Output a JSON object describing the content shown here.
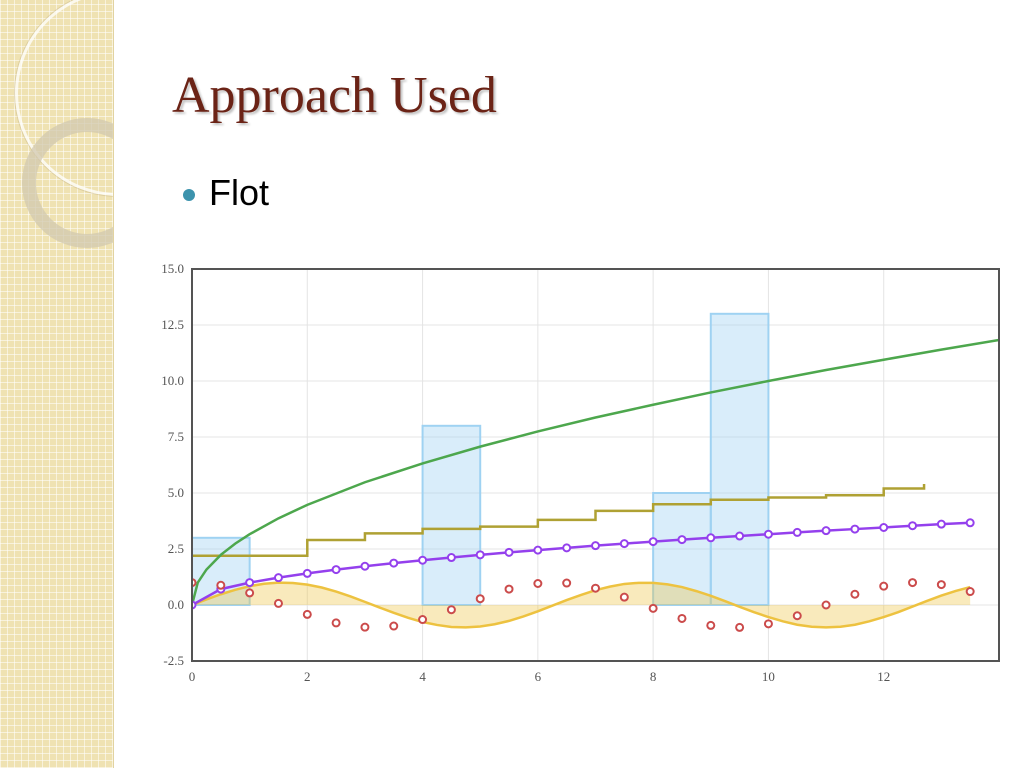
{
  "slide": {
    "title": "Approach Used",
    "bullets": [
      "Flot"
    ]
  },
  "colors": {
    "title": "#6b2316",
    "bullet": "#3c93ad",
    "sidebar": "#efe2b2"
  },
  "chart_data": {
    "type": "line",
    "xlim": [
      0,
      14
    ],
    "ylim": [
      -2.5,
      15.0
    ],
    "xticks": [
      0,
      2,
      4,
      6,
      8,
      10,
      12
    ],
    "yticks": [
      -2.5,
      0.0,
      2.5,
      5.0,
      7.5,
      10.0,
      12.5,
      15.0
    ],
    "xtick_labels": [
      "0",
      "2",
      "4",
      "6",
      "8",
      "10",
      "12"
    ],
    "ytick_labels": [
      "-2.5",
      "0.0",
      "2.5",
      "5.0",
      "7.5",
      "10.0",
      "12.5",
      "15.0"
    ],
    "grid": true,
    "series": [
      {
        "type": "bar",
        "color": "#9fd2f2",
        "bars": [
          {
            "x0": 0,
            "x1": 1,
            "y": 3
          },
          {
            "x0": 4,
            "x1": 5,
            "y": 8
          },
          {
            "x0": 8,
            "x1": 9,
            "y": 5
          },
          {
            "x0": 9,
            "x1": 10,
            "y": 13
          }
        ]
      },
      {
        "type": "area",
        "color": "#edc240",
        "x": [
          0,
          0.25,
          0.5,
          0.75,
          1,
          1.25,
          1.5,
          1.75,
          2,
          2.25,
          2.5,
          2.75,
          3,
          3.25,
          3.5,
          3.75,
          4,
          4.25,
          4.5,
          4.75,
          5,
          5.25,
          5.5,
          5.75,
          6,
          6.25,
          6.5,
          6.75,
          7,
          7.25,
          7.5,
          7.75,
          8,
          8.25,
          8.5,
          8.75,
          9,
          9.25,
          9.5,
          9.75,
          10,
          10.25,
          10.5,
          10.75,
          11,
          11.25,
          11.5,
          11.75,
          12,
          12.25,
          12.5,
          12.75,
          13,
          13.25,
          13.5
        ],
        "y": [
          0,
          0.25,
          0.48,
          0.68,
          0.84,
          0.95,
          1.0,
          0.98,
          0.91,
          0.78,
          0.6,
          0.38,
          0.14,
          -0.11,
          -0.35,
          -0.57,
          -0.76,
          -0.89,
          -0.98,
          -1.0,
          -0.96,
          -0.86,
          -0.71,
          -0.51,
          -0.28,
          -0.03,
          0.22,
          0.45,
          0.66,
          0.82,
          0.94,
          0.99,
          0.99,
          0.92,
          0.8,
          0.62,
          0.41,
          0.17,
          -0.08,
          -0.32,
          -0.54,
          -0.73,
          -0.88,
          -0.97,
          -1.0,
          -0.97,
          -0.88,
          -0.73,
          -0.54,
          -0.32,
          -0.07,
          0.18,
          0.42,
          0.63,
          0.8
        ]
      },
      {
        "type": "step",
        "color": "#afa133",
        "x": [
          0,
          1,
          2,
          3,
          4,
          5,
          6,
          7,
          8,
          9,
          10,
          11,
          12,
          12.7
        ],
        "y": [
          2.2,
          2.2,
          2.9,
          3.2,
          3.4,
          3.5,
          3.8,
          4.2,
          4.5,
          4.7,
          4.8,
          4.9,
          5.2,
          5.4
        ]
      },
      {
        "type": "line",
        "color": "#4da74d",
        "x": [
          0,
          0.1,
          0.25,
          0.5,
          0.75,
          1,
          1.5,
          2,
          3,
          4,
          5,
          6,
          7,
          8,
          9,
          10,
          11,
          12,
          13,
          14
        ],
        "y": [
          0,
          1.0,
          1.58,
          2.24,
          2.74,
          3.16,
          3.87,
          4.47,
          5.48,
          6.32,
          7.07,
          7.75,
          8.37,
          8.94,
          9.49,
          10.0,
          10.49,
          10.95,
          11.4,
          11.83
        ]
      },
      {
        "type": "line-points",
        "color": "#9440ed",
        "x": [
          0,
          0.5,
          1,
          1.5,
          2,
          2.5,
          3,
          3.5,
          4,
          4.5,
          5,
          5.5,
          6,
          6.5,
          7,
          7.5,
          8,
          8.5,
          9,
          9.5,
          10,
          10.5,
          11,
          11.5,
          12,
          12.5,
          13,
          13.5
        ],
        "y": [
          0,
          0.71,
          1.0,
          1.22,
          1.41,
          1.58,
          1.73,
          1.87,
          2.0,
          2.12,
          2.24,
          2.35,
          2.45,
          2.55,
          2.65,
          2.74,
          2.83,
          2.92,
          3.0,
          3.08,
          3.16,
          3.24,
          3.32,
          3.39,
          3.46,
          3.54,
          3.61,
          3.67
        ]
      },
      {
        "type": "points",
        "color": "#cb4b4b",
        "x": [
          0,
          0.5,
          1,
          1.5,
          2,
          2.5,
          3,
          3.5,
          4,
          4.5,
          5,
          5.5,
          6,
          6.5,
          7,
          7.5,
          8,
          8.5,
          9,
          9.5,
          10,
          10.5,
          11,
          11.5,
          12,
          12.5,
          13,
          13.5
        ],
        "y": [
          1.0,
          0.88,
          0.54,
          0.07,
          -0.42,
          -0.8,
          -0.99,
          -0.94,
          -0.65,
          -0.21,
          0.28,
          0.71,
          0.96,
          0.98,
          0.75,
          0.35,
          -0.15,
          -0.6,
          -0.91,
          -1.0,
          -0.84,
          -0.48,
          0.0,
          0.48,
          0.84,
          1.0,
          0.91,
          0.6
        ]
      }
    ]
  }
}
